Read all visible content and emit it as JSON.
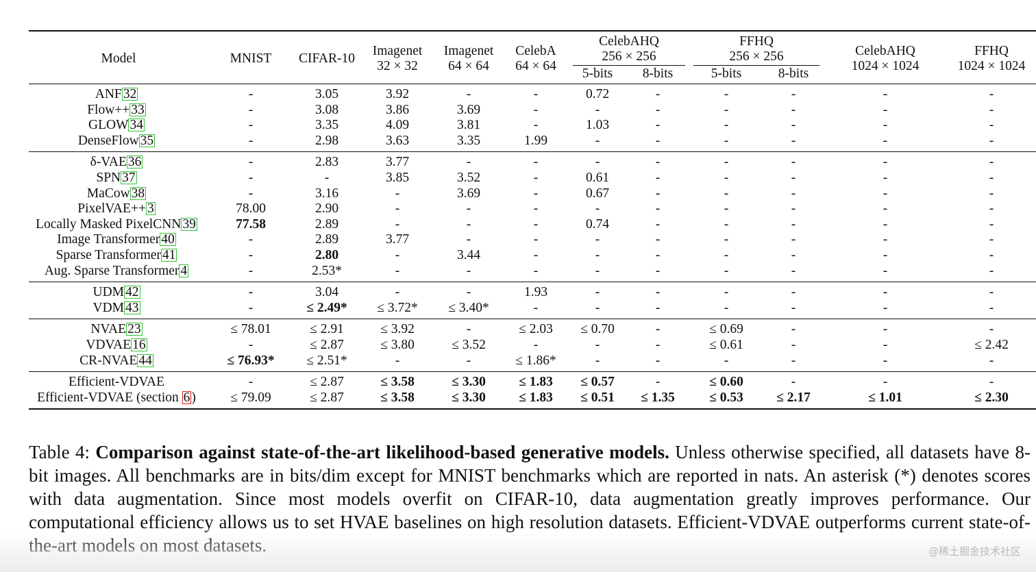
{
  "table": {
    "header": {
      "model": "Model",
      "mnist": "MNIST",
      "cifar10": "CIFAR-10",
      "imagenet32": [
        "Imagenet",
        "32 × 32"
      ],
      "imagenet64": [
        "Imagenet",
        "64 × 64"
      ],
      "celeba64": [
        "CelebA",
        "64 × 64"
      ],
      "celebahq256": [
        "CelebAHQ",
        "256 × 256"
      ],
      "ffhq256": [
        "FFHQ",
        "256 × 256"
      ],
      "celebahq1024": [
        "CelebAHQ",
        "1024 × 1024"
      ],
      "ffhq1024": [
        "FFHQ",
        "1024 × 1024"
      ],
      "bits": [
        "5-bits",
        "8-bits",
        "5-bits",
        "8-bits"
      ]
    },
    "groups": [
      [
        {
          "name": "ANF",
          "cite": "32",
          "cells": [
            "-",
            "3.05",
            "3.92",
            "-",
            "-",
            "0.72",
            "-",
            "-",
            "-",
            "-",
            "-"
          ]
        },
        {
          "name": "Flow++",
          "cite": "33",
          "cells": [
            "-",
            "3.08",
            "3.86",
            "3.69",
            "-",
            "-",
            "-",
            "-",
            "-",
            "-",
            "-"
          ]
        },
        {
          "name": "GLOW",
          "cite": "34",
          "cells": [
            "-",
            "3.35",
            "4.09",
            "3.81",
            "-",
            "1.03",
            "-",
            "-",
            "-",
            "-",
            "-"
          ]
        },
        {
          "name": "DenseFlow",
          "cite": "35",
          "cells": [
            "-",
            "2.98",
            "3.63",
            "3.35",
            "1.99",
            "-",
            "-",
            "-",
            "-",
            "-",
            "-"
          ]
        }
      ],
      [
        {
          "name": "δ-VAE",
          "cite": "36",
          "cells": [
            "-",
            "2.83",
            "3.77",
            "-",
            "-",
            "-",
            "-",
            "-",
            "-",
            "-",
            "-"
          ]
        },
        {
          "name": "SPN",
          "cite": "37",
          "cells": [
            "-",
            "-",
            "3.85",
            "3.52",
            "-",
            "0.61",
            "-",
            "-",
            "-",
            "-",
            "-"
          ]
        },
        {
          "name": "MaCow",
          "cite": "38",
          "cells": [
            "-",
            "3.16",
            "-",
            "3.69",
            "-",
            "0.67",
            "-",
            "-",
            "-",
            "-",
            "-"
          ]
        },
        {
          "name": "PixelVAE++",
          "cite": "3",
          "cells": [
            "78.00",
            "2.90",
            "-",
            "-",
            "-",
            "-",
            "-",
            "-",
            "-",
            "-",
            "-"
          ]
        },
        {
          "name": "Locally Masked PixelCNN",
          "cite": "39",
          "cells": [
            "77.58",
            "2.89",
            "-",
            "-",
            "-",
            "0.74",
            "-",
            "-",
            "-",
            "-",
            "-"
          ],
          "bold": [
            0
          ]
        },
        {
          "name": "Image Transformer",
          "cite": "40",
          "cells": [
            "-",
            "2.89",
            "3.77",
            "-",
            "-",
            "-",
            "-",
            "-",
            "-",
            "-",
            "-"
          ]
        },
        {
          "name": "Sparse Transformer",
          "cite": "41",
          "cells": [
            "-",
            "2.80",
            "-",
            "3.44",
            "-",
            "-",
            "-",
            "-",
            "-",
            "-",
            "-"
          ],
          "bold": [
            1
          ]
        },
        {
          "name": "Aug. Sparse Transformer",
          "cite": "4",
          "cells": [
            "-",
            "2.53*",
            "-",
            "-",
            "-",
            "-",
            "-",
            "-",
            "-",
            "-",
            "-"
          ]
        }
      ],
      [
        {
          "name": "UDM",
          "cite": "42",
          "cells": [
            "-",
            "3.04",
            "-",
            "-",
            "1.93",
            "-",
            "-",
            "-",
            "-",
            "-",
            "-"
          ]
        },
        {
          "name": "VDM",
          "cite": "43",
          "cells": [
            "-",
            "≤ 2.49*",
            "≤ 3.72*",
            "≤ 3.40*",
            "-",
            "-",
            "-",
            "-",
            "-",
            "-",
            "-"
          ],
          "bold": [
            1
          ]
        }
      ],
      [
        {
          "name": "NVAE",
          "cite": "23",
          "cells": [
            "≤ 78.01",
            "≤ 2.91",
            "≤ 3.92",
            "-",
            "≤ 2.03",
            "≤ 0.70",
            "-",
            "≤ 0.69",
            "-",
            "-",
            "-"
          ]
        },
        {
          "name": "VDVAE",
          "cite": "16",
          "cells": [
            "-",
            "≤ 2.87",
            "≤ 3.80",
            "≤ 3.52",
            "-",
            "-",
            "-",
            "≤ 0.61",
            "-",
            "-",
            "≤ 2.42"
          ]
        },
        {
          "name": "CR-NVAE",
          "cite": "44",
          "cells": [
            "≤ 76.93*",
            "≤ 2.51*",
            "-",
            "-",
            "≤ 1.86*",
            "-",
            "-",
            "-",
            "-",
            "-",
            "-"
          ],
          "bold": [
            0
          ]
        }
      ],
      [
        {
          "name": "Efficient-VDVAE",
          "cite": "",
          "cells": [
            "-",
            "≤ 2.87",
            "≤ 3.58",
            "≤ 3.30",
            "≤ 1.83",
            "≤ 0.57",
            "-",
            "≤ 0.60",
            "-",
            "-",
            "-"
          ],
          "bold": [
            2,
            3,
            4,
            5,
            7
          ]
        },
        {
          "name": "Efficient-VDVAE (section ",
          "cite": "6",
          "cite_style": "red",
          "name_suffix": ")",
          "cells": [
            "≤ 79.09",
            "≤ 2.87",
            "≤ 3.58",
            "≤ 3.30",
            "≤ 1.83",
            "≤ 0.51",
            "≤ 1.35",
            "≤ 0.53",
            "≤ 2.17",
            "≤ 1.01",
            "≤ 2.30"
          ],
          "bold": [
            2,
            3,
            4,
            5,
            6,
            7,
            8,
            9,
            10
          ]
        }
      ]
    ]
  },
  "caption": {
    "label": "Table 4:",
    "bold_title": "Comparison against state-of-the-art likelihood-based generative models.",
    "text": "Unless otherwise specified, all datasets have 8-bit images. All benchmarks are in bits/dim except for MNIST benchmarks which are reported in nats. An asterisk (*) denotes scores with data augmentation. Since most models overfit on CIFAR-10, data augmentation greatly improves performance. Our computational efficiency allows us to set HVAE baselines on high resolution datasets. Efficient-VDVAE outperforms current state-of-the-art models on most datasets."
  },
  "watermark": "@稀土掘金技术社区"
}
